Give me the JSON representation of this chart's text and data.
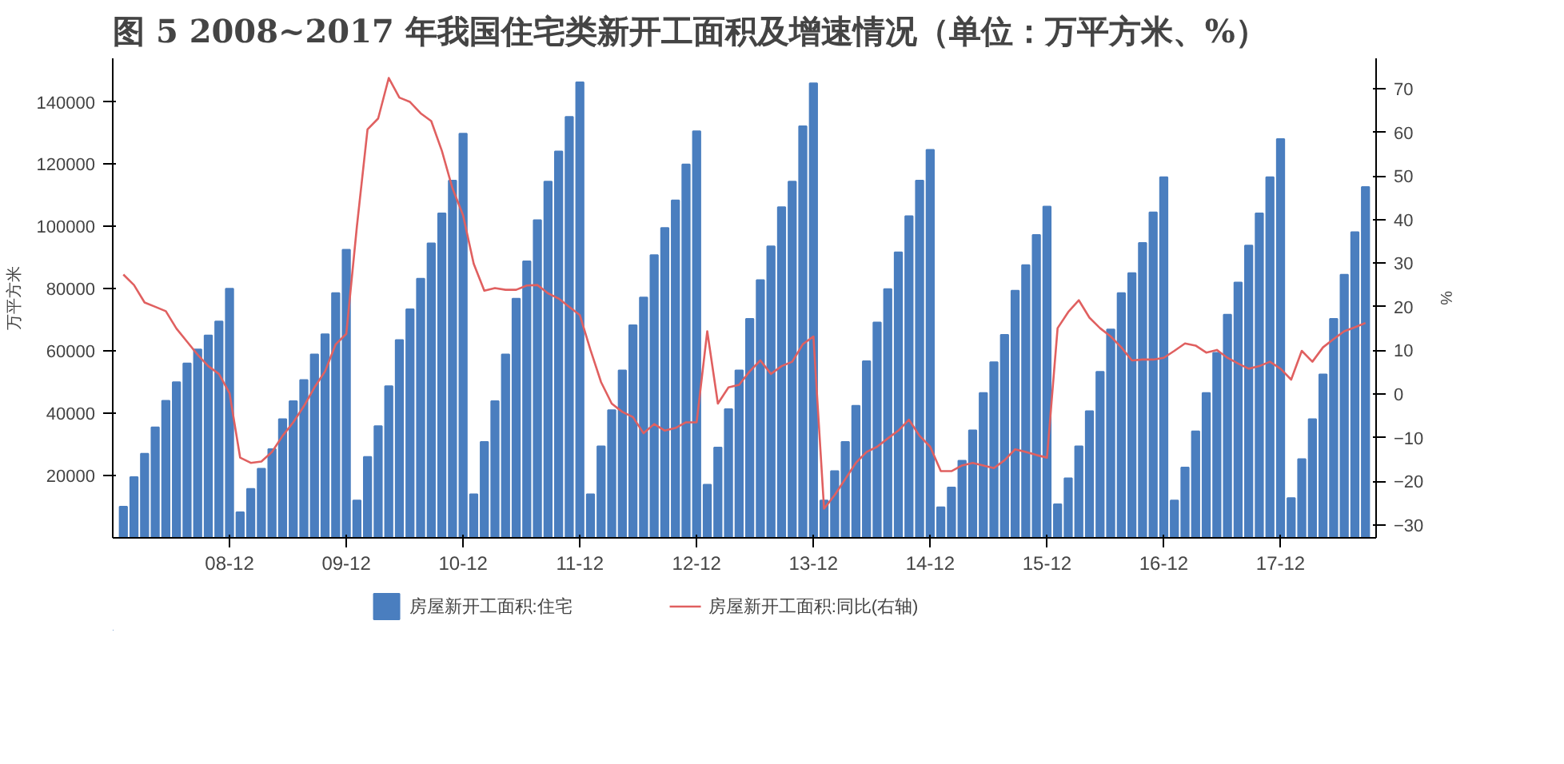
{
  "chart_data": {
    "type": "bar",
    "title": "图 5   2008~2017 年我国住宅类新开工面积及增速情况（单位：万平方米、%）",
    "ylabel": "万平方米",
    "y2label": "%",
    "categories": [
      null,
      null,
      null,
      null,
      null,
      null,
      null,
      null,
      null,
      null,
      "08-12",
      null,
      null,
      null,
      null,
      null,
      null,
      null,
      null,
      null,
      null,
      "09-12",
      null,
      null,
      null,
      null,
      null,
      null,
      null,
      null,
      null,
      null,
      "10-12",
      null,
      null,
      null,
      null,
      null,
      null,
      null,
      null,
      null,
      null,
      "11-12",
      null,
      null,
      null,
      null,
      null,
      null,
      null,
      null,
      null,
      null,
      "12-12",
      null,
      null,
      null,
      null,
      null,
      null,
      null,
      null,
      null,
      null,
      "13-12",
      null,
      null,
      null,
      null,
      null,
      null,
      null,
      null,
      null,
      null,
      "14-12",
      null,
      null,
      null,
      null,
      null,
      null,
      null,
      null,
      null,
      null,
      "15-12",
      null,
      null,
      null,
      null,
      null,
      null,
      null,
      null,
      null,
      null,
      "16-12",
      null,
      null,
      null,
      null,
      null,
      null,
      null,
      null,
      null,
      null,
      "17-12",
      null,
      null,
      null,
      null,
      null,
      null,
      null,
      null
    ],
    "series": [
      {
        "name": "房屋新开工面积:住宅",
        "color": "#4a7ebf",
        "values": [
          10000,
          19500,
          27000,
          35500,
          44000,
          50000,
          56000,
          60500,
          65000,
          69500,
          80000,
          8200,
          15700,
          22200,
          28500,
          38100,
          43900,
          50700,
          58900,
          65400,
          78600,
          92500,
          12000,
          26000,
          35900,
          48700,
          63500,
          73400,
          83200,
          94600,
          104200,
          114700,
          129800,
          14000,
          30800,
          43900,
          58900,
          76800,
          88800,
          102000,
          114400,
          124100,
          135200,
          146300,
          14000,
          29400,
          41000,
          53800,
          68300,
          77200,
          90800,
          99500,
          108400,
          119900,
          130600,
          17100,
          29000,
          41300,
          53800,
          70300,
          82800,
          93600,
          106200,
          114400,
          132200,
          146000,
          12000,
          21400,
          30800,
          42400,
          56700,
          69200,
          79900,
          91700,
          103300,
          114700,
          124600,
          9800,
          16200,
          24800,
          34500,
          46500,
          56400,
          65200,
          79400,
          87600,
          97300,
          106400,
          10800,
          19100,
          29400,
          40700,
          53300,
          66900,
          78600,
          85000,
          94700,
          104500,
          115800,
          12000,
          22600,
          34200,
          46500,
          59400,
          71700,
          82000,
          93900,
          104200,
          115800,
          128100,
          12800,
          25300,
          38100,
          52500,
          70300,
          84500,
          98200,
          112700
        ]
      },
      {
        "name": "房屋新开工面积:同比(右轴)",
        "type": "line",
        "axis": "y2",
        "color": "#e06060",
        "values": [
          27.4,
          25,
          21,
          20,
          19,
          15,
          12,
          9,
          6.4,
          4.6,
          0.2,
          -14.6,
          -15.8,
          -15.5,
          -13.3,
          -9.6,
          -6.5,
          -2.8,
          1.5,
          5.2,
          11.4,
          13.8,
          38.5,
          60.7,
          63.2,
          72.5,
          68,
          67,
          64.4,
          62.6,
          55.8,
          47.2,
          41,
          29.9,
          23.7,
          24.3,
          23.9,
          23.9,
          24.9,
          25,
          23.1,
          21.9,
          20,
          18.1,
          10.1,
          2.7,
          -2.2,
          -4.1,
          -5.3,
          -9,
          -6.9,
          -8.4,
          -7.8,
          -6.5,
          -6.5,
          14.4,
          -2.2,
          1.5,
          2.1,
          5.2,
          7.7,
          4.6,
          6.4,
          7.4,
          11.4,
          13.2,
          -26.3,
          -23.2,
          -19.5,
          -15.8,
          -13.3,
          -12.1,
          -10.2,
          -8.4,
          -5.9,
          -9.6,
          -12.1,
          -17.7,
          -17.7,
          -16.4,
          -15.8,
          -16.4,
          -17,
          -15.2,
          -12.7,
          -13.3,
          -14,
          -14.6,
          15.1,
          18.8,
          21.5,
          17.5,
          15.1,
          13.2,
          10.7,
          7.7,
          7.9,
          7.9,
          8.3,
          9.9,
          11.6,
          11.1,
          9.5,
          10.1,
          8.3,
          7,
          5.8,
          6.4,
          7.4,
          5.8,
          3.3,
          9.9,
          7.4,
          10.7,
          12.6,
          14.4,
          15.3,
          16.3
        ]
      }
    ],
    "ylim": [
      0,
      154000
    ],
    "yticks": [
      20000,
      40000,
      60000,
      80000,
      100000,
      120000,
      140000
    ],
    "y2lim": [
      -33,
      77
    ],
    "y2ticks": [
      -30,
      -20,
      -10,
      0,
      10,
      20,
      30,
      40,
      50,
      60,
      70
    ],
    "legend": "bottom",
    "grid": false
  }
}
